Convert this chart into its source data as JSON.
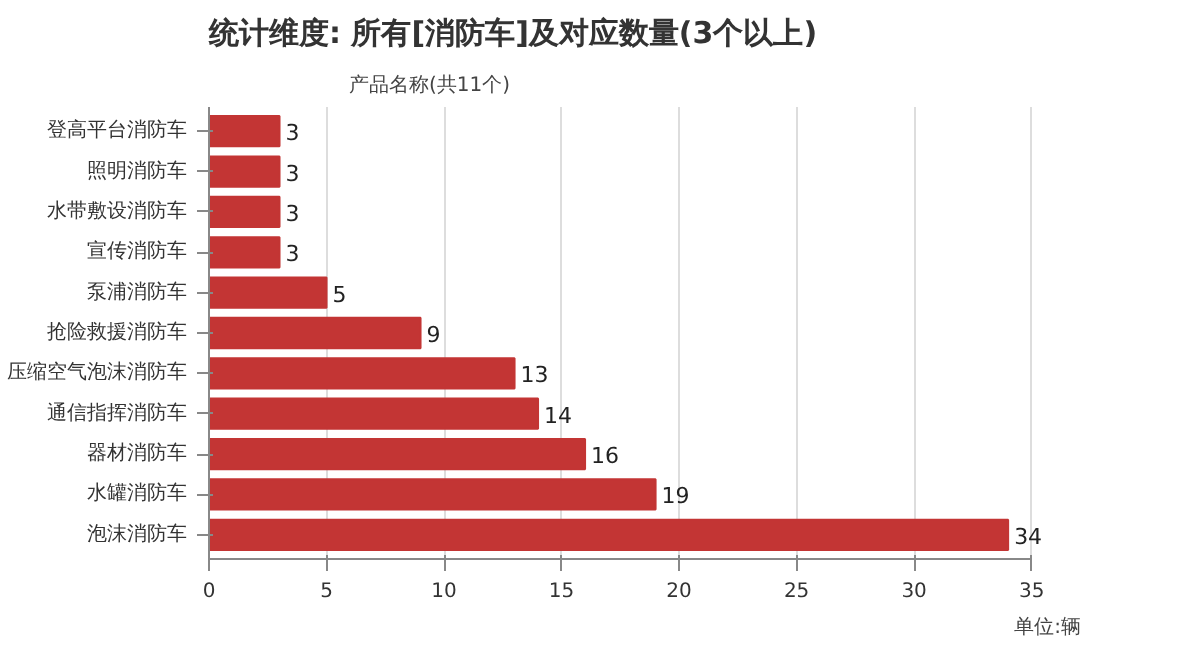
{
  "chart_data": {
    "type": "bar",
    "orientation": "horizontal",
    "title": "统计维度: 所有[消防车]及对应数量(3个以上)",
    "ylabel": "产品名称(共11个)",
    "xlabel": "单位:辆",
    "categories": [
      "登高平台消防车",
      "照明消防车",
      "水带敷设消防车",
      "宣传消防车",
      "泵浦消防车",
      "抢险救援消防车",
      "压缩空气泡沫消防车",
      "通信指挥消防车",
      "器材消防车",
      "水罐消防车",
      "泡沫消防车"
    ],
    "values": [
      3,
      3,
      3,
      3,
      5,
      9,
      13,
      14,
      16,
      19,
      34
    ],
    "color": "#c33534",
    "xlim": [
      0,
      35
    ],
    "xticks": [
      0,
      5,
      10,
      15,
      20,
      25,
      30,
      35
    ],
    "grid": "x",
    "data_labels": true
  }
}
